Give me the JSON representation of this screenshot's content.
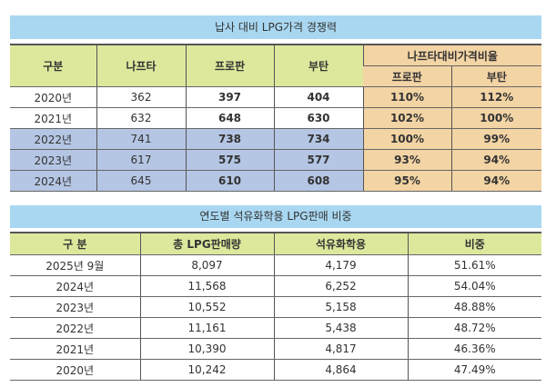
{
  "table1": {
    "title": "납사 대비 LPG가격 경쟁력",
    "headers": [
      "구분",
      "나프타",
      "프로판",
      "부탄"
    ],
    "group_header": "나프타대비가격비율",
    "sub_headers": [
      "프로판",
      "부탄"
    ],
    "rows": [
      [
        "2020년",
        "362",
        "397",
        "404",
        "110%",
        "112%"
      ],
      [
        "2021년",
        "632",
        "648",
        "630",
        "102%",
        "100%"
      ],
      [
        "2022년",
        "741",
        "738",
        "734",
        "100%",
        "99%"
      ],
      [
        "2023년",
        "617",
        "575",
        "577",
        "93%",
        "94%"
      ],
      [
        "2024년",
        "645",
        "610",
        "608",
        "95%",
        "94%"
      ]
    ],
    "colors": {
      "title_bg": "#a9d7f1",
      "header_bg": "#dde89c",
      "ratio_bg": "#f3d4a4",
      "highlight_rows_bg": "#b5c6e4"
    }
  },
  "table2": {
    "title": "연도별 석유화학용 LPG판매 비중",
    "headers": [
      "구 분",
      "총 LPG판매량",
      "석유화학용",
      "비중"
    ],
    "rows": [
      [
        "2025년 9월",
        "8,097",
        "4,179",
        "51.61%"
      ],
      [
        "2024년",
        "11,568",
        "6,252",
        "54.04%"
      ],
      [
        "2023년",
        "10,552",
        "5,158",
        "48.88%"
      ],
      [
        "2022년",
        "11,161",
        "5,438",
        "48.72%"
      ],
      [
        "2021년",
        "10,390",
        "4,817",
        "46.36%"
      ],
      [
        "2020년",
        "10,242",
        "4,864",
        "47.49%"
      ]
    ]
  }
}
